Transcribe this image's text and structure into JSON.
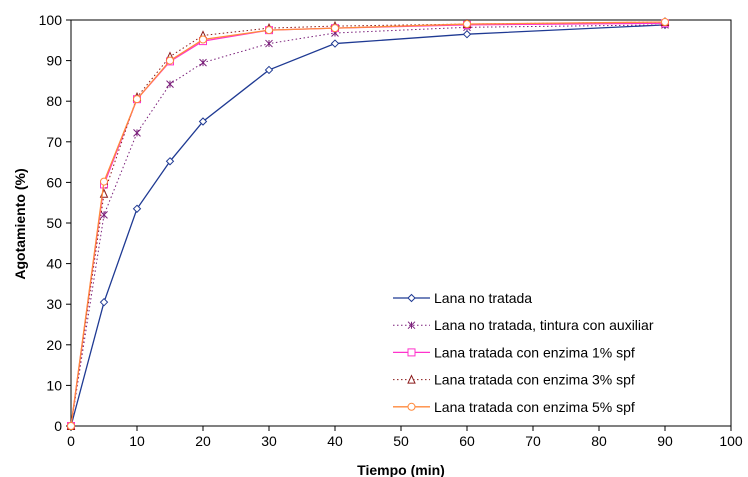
{
  "chart_data": {
    "type": "line",
    "title": "",
    "xlabel": "Tiempo (min)",
    "ylabel": "Agotamiento (%)",
    "xlim": [
      0,
      100
    ],
    "ylim": [
      0,
      100
    ],
    "xticks": [
      "0",
      "10",
      "20",
      "30",
      "40",
      "50",
      "60",
      "70",
      "80",
      "90",
      "100"
    ],
    "yticks": [
      "0",
      "10",
      "20",
      "30",
      "40",
      "50",
      "60",
      "70",
      "80",
      "90",
      "100"
    ],
    "grid": false,
    "legend_position": "bottom-right",
    "series": [
      {
        "name": "Lana no tratada",
        "color": "#1f3a93",
        "marker": "diamond",
        "line_style": "solid",
        "x": [
          0,
          5,
          10,
          15,
          20,
          30,
          40,
          60,
          90
        ],
        "y": [
          0,
          30.5,
          53.5,
          65.2,
          75,
          87.7,
          94.2,
          96.5,
          98.8
        ]
      },
      {
        "name": "Lana no tratada, tintura con auxiliar",
        "color": "#7a1f7a",
        "marker": "star",
        "line_style": "dotted",
        "x": [
          0,
          5,
          10,
          15,
          20,
          30,
          40,
          60,
          90
        ],
        "y": [
          0,
          52,
          72.2,
          84.2,
          89.5,
          94.2,
          96.8,
          98.2,
          98.8
        ]
      },
      {
        "name": "Lana tratada con enzima 1% spf",
        "color": "#ff33cc",
        "marker": "square",
        "line_style": "solid",
        "x": [
          0,
          5,
          10,
          15,
          20,
          30,
          40,
          60,
          90
        ],
        "y": [
          0,
          59.5,
          80.5,
          89.8,
          94.8,
          97.5,
          98,
          98.8,
          99.2
        ]
      },
      {
        "name": "Lana tratada con enzima 3% spf",
        "color": "#8b1a1a",
        "marker": "triangle",
        "line_style": "dotted",
        "x": [
          0,
          5,
          10,
          15,
          20,
          30,
          40,
          60,
          90
        ],
        "y": [
          0,
          57.2,
          81,
          91,
          96.2,
          98,
          98.5,
          99,
          99.5
        ]
      },
      {
        "name": "Lana tratada con enzima 5% spf",
        "color": "#ff8a3d",
        "marker": "circle",
        "line_style": "solid",
        "x": [
          0,
          5,
          10,
          15,
          20,
          30,
          40,
          60,
          90
        ],
        "y": [
          0,
          60.2,
          80.5,
          90,
          95.2,
          97.5,
          98,
          99,
          99.5
        ]
      }
    ]
  }
}
